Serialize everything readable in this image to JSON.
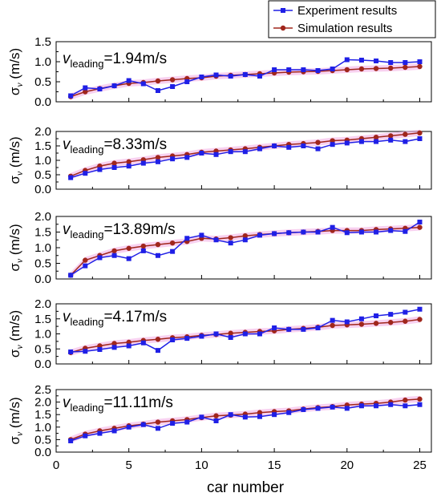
{
  "chart_data": {
    "type": "line",
    "xlabel": "car number",
    "x_ticks": [
      "0",
      "5",
      "10",
      "15",
      "20",
      "25"
    ],
    "xlim": [
      0,
      25.8
    ],
    "x": [
      1,
      2,
      3,
      4,
      5,
      6,
      7,
      8,
      9,
      10,
      11,
      12,
      13,
      14,
      15,
      16,
      17,
      18,
      19,
      20,
      21,
      22,
      23,
      24,
      25
    ],
    "legend": {
      "placement": "top-right",
      "items": [
        "Experiment results",
        "Simulation results"
      ]
    },
    "colors": {
      "experiment": "#1f1fe6",
      "simulation": "#a0261c",
      "band": "#f4b3e6"
    },
    "ylabel": {
      "sigma": "σ",
      "sub": "v",
      "unit": " (m/s)"
    },
    "panels": [
      {
        "annotation": {
          "base": "v",
          "sub": "leading",
          "value": "=1.94m/s"
        },
        "ylim": [
          0,
          1.5
        ],
        "y_ticks": [
          "0.0",
          "0.5",
          "1.0",
          "1.5"
        ],
        "series": [
          {
            "name": "Experiment results",
            "values": [
              0.15,
              0.35,
              0.32,
              0.4,
              0.53,
              0.45,
              0.28,
              0.38,
              0.5,
              0.62,
              0.67,
              0.64,
              0.68,
              0.64,
              0.8,
              0.8,
              0.8,
              0.78,
              0.82,
              1.05,
              1.04,
              1.02,
              0.98,
              0.98,
              1.0
            ]
          },
          {
            "name": "Simulation results",
            "values": [
              0.13,
              0.25,
              0.33,
              0.4,
              0.46,
              0.48,
              0.52,
              0.55,
              0.58,
              0.6,
              0.64,
              0.66,
              0.68,
              0.7,
              0.72,
              0.74,
              0.75,
              0.76,
              0.78,
              0.8,
              0.82,
              0.83,
              0.84,
              0.86,
              0.88
            ]
          }
        ]
      },
      {
        "annotation": {
          "base": "v",
          "sub": "leading",
          "value": "=8.33m/s"
        },
        "ylim": [
          0,
          2.0
        ],
        "y_ticks": [
          "0.0",
          "0.5",
          "1.0",
          "1.5",
          "2.0"
        ],
        "series": [
          {
            "name": "Experiment results",
            "values": [
              0.4,
              0.55,
              0.68,
              0.75,
              0.8,
              0.9,
              0.95,
              1.05,
              1.1,
              1.25,
              1.2,
              1.3,
              1.3,
              1.4,
              1.5,
              1.45,
              1.5,
              1.4,
              1.55,
              1.6,
              1.65,
              1.65,
              1.7,
              1.65,
              1.75
            ]
          },
          {
            "name": "Simulation results",
            "values": [
              0.45,
              0.65,
              0.8,
              0.9,
              0.95,
              1.02,
              1.1,
              1.15,
              1.2,
              1.28,
              1.32,
              1.36,
              1.4,
              1.45,
              1.5,
              1.55,
              1.58,
              1.62,
              1.68,
              1.7,
              1.75,
              1.8,
              1.85,
              1.9,
              1.95
            ]
          }
        ]
      },
      {
        "annotation": {
          "base": "v",
          "sub": "leading",
          "value": "=13.89m/s"
        },
        "ylim": [
          0,
          2.0
        ],
        "y_ticks": [
          "0.0",
          "0.5",
          "1.0",
          "1.5",
          "2.0"
        ],
        "series": [
          {
            "name": "Experiment results",
            "values": [
              0.12,
              0.42,
              0.68,
              0.75,
              0.65,
              0.9,
              0.75,
              0.88,
              1.3,
              1.4,
              1.25,
              1.15,
              1.25,
              1.4,
              1.45,
              1.48,
              1.5,
              1.5,
              1.65,
              1.48,
              1.5,
              1.5,
              1.55,
              1.52,
              1.82
            ]
          },
          {
            "name": "Simulation results",
            "values": [
              0.12,
              0.6,
              0.75,
              0.9,
              0.98,
              1.05,
              1.1,
              1.15,
              1.2,
              1.3,
              1.28,
              1.32,
              1.38,
              1.42,
              1.45,
              1.48,
              1.5,
              1.52,
              1.55,
              1.55,
              1.55,
              1.58,
              1.6,
              1.62,
              1.65
            ]
          }
        ]
      },
      {
        "annotation": {
          "base": "v",
          "sub": "leading",
          "value": "=4.17m/s"
        },
        "ylim": [
          0,
          2.0
        ],
        "y_ticks": [
          "0.0",
          "0.5",
          "1.0",
          "1.5",
          "2.0"
        ],
        "series": [
          {
            "name": "Experiment results",
            "values": [
              0.4,
              0.42,
              0.48,
              0.55,
              0.6,
              0.7,
              0.45,
              0.8,
              0.85,
              0.92,
              1.0,
              0.88,
              1.0,
              1.0,
              1.2,
              1.15,
              1.15,
              1.2,
              1.45,
              1.4,
              1.5,
              1.6,
              1.65,
              1.72,
              1.82
            ]
          },
          {
            "name": "Simulation results",
            "values": [
              0.38,
              0.52,
              0.6,
              0.68,
              0.72,
              0.78,
              0.82,
              0.87,
              0.9,
              0.95,
              0.98,
              1.02,
              1.05,
              1.08,
              1.1,
              1.15,
              1.18,
              1.22,
              1.28,
              1.3,
              1.32,
              1.35,
              1.38,
              1.42,
              1.48
            ]
          }
        ]
      },
      {
        "annotation": {
          "base": "v",
          "sub": "leading",
          "value": "=11.11m/s"
        },
        "ylim": [
          0,
          2.5
        ],
        "y_ticks": [
          "0.0",
          "0.5",
          "1.0",
          "1.5",
          "2.0",
          "2.5"
        ],
        "series": [
          {
            "name": "Experiment results",
            "values": [
              0.45,
              0.65,
              0.75,
              0.85,
              1.0,
              1.1,
              0.95,
              1.15,
              1.2,
              1.4,
              1.25,
              1.5,
              1.4,
              1.42,
              1.5,
              1.58,
              1.7,
              1.75,
              1.8,
              1.75,
              1.85,
              1.85,
              1.9,
              1.85,
              1.9
            ]
          },
          {
            "name": "Simulation results",
            "values": [
              0.5,
              0.72,
              0.85,
              0.95,
              1.05,
              1.12,
              1.2,
              1.25,
              1.3,
              1.38,
              1.45,
              1.48,
              1.52,
              1.58,
              1.62,
              1.65,
              1.72,
              1.78,
              1.82,
              1.88,
              1.92,
              1.95,
              2.0,
              2.08,
              2.12
            ]
          }
        ]
      }
    ]
  }
}
